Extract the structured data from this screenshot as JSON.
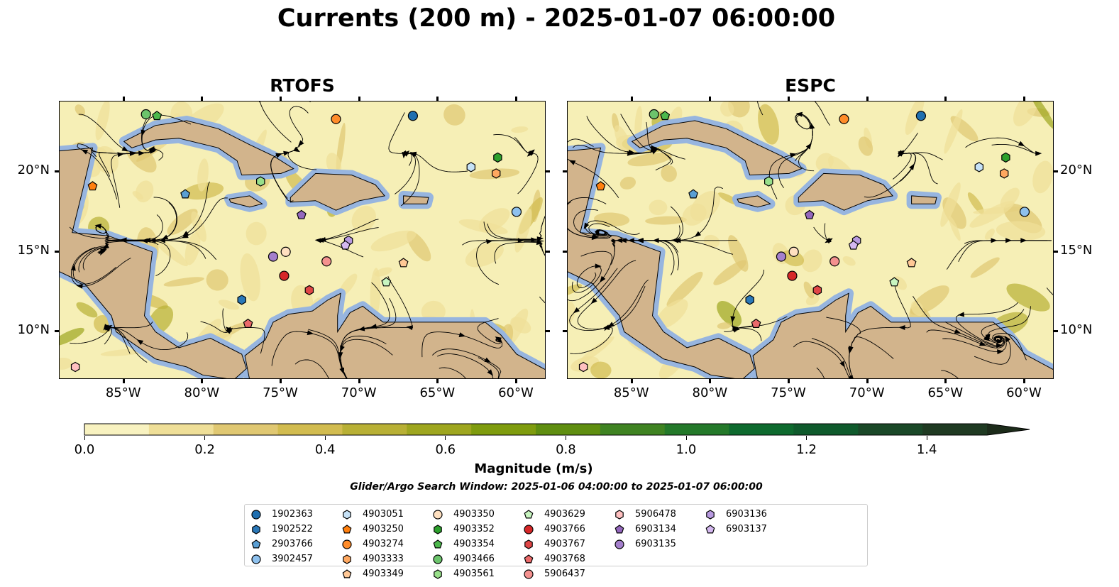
{
  "title": "Currents (200 m) - 2025-01-07 06:00:00",
  "panels": [
    {
      "title": "RTOFS",
      "lat_labels_side": "left"
    },
    {
      "title": "ESPC",
      "lat_labels_side": "right"
    }
  ],
  "map_extent": {
    "lon": [
      -89.1,
      -58.1
    ],
    "lat": [
      7.0,
      24.4
    ]
  },
  "lon_ticks": [
    {
      "value": -85,
      "label": "85°W"
    },
    {
      "value": -80,
      "label": "80°W"
    },
    {
      "value": -75,
      "label": "75°W"
    },
    {
      "value": -70,
      "label": "70°W"
    },
    {
      "value": -65,
      "label": "65°W"
    },
    {
      "value": -60,
      "label": "60°W"
    }
  ],
  "lat_ticks": [
    {
      "value": 20,
      "label": "20°N"
    },
    {
      "value": 15,
      "label": "15°N"
    },
    {
      "value": 10,
      "label": "10°N"
    }
  ],
  "colors": {
    "land": "#d2b48c",
    "shelf": "#97b5df",
    "ocean_low": "#f6efb6"
  },
  "colorbar": {
    "label": "Magnitude (m/s)",
    "min": 0.0,
    "max": 1.5,
    "extend": "max",
    "colors": [
      "#f8f2c0",
      "#efdf98",
      "#e0c872",
      "#d2bc50",
      "#b8b035",
      "#9ea61f",
      "#7f9c0e",
      "#5f8e10",
      "#3f8322",
      "#24792a",
      "#0e6a2e",
      "#0f5a2c",
      "#1a4828",
      "#1f3a22",
      "#1c2b1a"
    ],
    "ticks": [
      {
        "value": 0.0,
        "label": "0.0"
      },
      {
        "value": 0.2,
        "label": "0.2"
      },
      {
        "value": 0.4,
        "label": "0.4"
      },
      {
        "value": 0.6,
        "label": "0.6"
      },
      {
        "value": 0.8,
        "label": "0.8"
      },
      {
        "value": 1.0,
        "label": "1.0"
      },
      {
        "value": 1.2,
        "label": "1.2"
      },
      {
        "value": 1.4,
        "label": "1.4"
      }
    ]
  },
  "search_window": "Glider/Argo Search Window: 2025-01-06 04:00:00 to 2025-01-07 06:00:00",
  "floats": [
    {
      "id": "1902363",
      "marker": "circle",
      "color": "#1f6fb0",
      "lon": -66.6,
      "lat": 23.5
    },
    {
      "id": "1902522",
      "marker": "hexagon",
      "color": "#2a78b8",
      "lon": -77.5,
      "lat": 12.0
    },
    {
      "id": "2903766",
      "marker": "pentagon",
      "color": "#5a9fd4",
      "lon": -81.1,
      "lat": 18.6
    },
    {
      "id": "3902457",
      "marker": "circle",
      "color": "#8ec1ee",
      "lon": -60.0,
      "lat": 17.5
    },
    {
      "id": "4903051",
      "marker": "hexagon",
      "color": "#c6e2f7",
      "lon": -62.9,
      "lat": 20.3
    },
    {
      "id": "4903250",
      "marker": "pentagon",
      "color": "#ff7f0e",
      "lon": -87.0,
      "lat": 19.1
    },
    {
      "id": "4903274",
      "marker": "circle",
      "color": "#ff8c2a",
      "lon": -71.5,
      "lat": 23.3
    },
    {
      "id": "4903333",
      "marker": "hexagon",
      "color": "#ffa860",
      "lon": -61.3,
      "lat": 19.9
    },
    {
      "id": "4903349",
      "marker": "pentagon",
      "color": "#ffc896",
      "lon": -67.2,
      "lat": 14.3
    },
    {
      "id": "4903350",
      "marker": "circle",
      "color": "#ffe0c0",
      "lon": -74.7,
      "lat": 15.0
    },
    {
      "id": "4903352",
      "marker": "hexagon",
      "color": "#2ca02c",
      "lon": -61.2,
      "lat": 20.9
    },
    {
      "id": "4903354",
      "marker": "pentagon",
      "color": "#4cb84c",
      "lon": -82.9,
      "lat": 23.5
    },
    {
      "id": "4903466",
      "marker": "circle",
      "color": "#6cc46c",
      "lon": -83.6,
      "lat": 23.6
    },
    {
      "id": "4903561",
      "marker": "hexagon",
      "color": "#98df8a",
      "lon": -76.3,
      "lat": 19.4
    },
    {
      "id": "4903629",
      "marker": "pentagon",
      "color": "#c8f5c0",
      "lon": -68.3,
      "lat": 13.1
    },
    {
      "id": "4903766",
      "marker": "circle",
      "color": "#d62728",
      "lon": -74.8,
      "lat": 13.5
    },
    {
      "id": "4903767",
      "marker": "hexagon",
      "color": "#e04646",
      "lon": -73.2,
      "lat": 12.6
    },
    {
      "id": "4903768",
      "marker": "pentagon",
      "color": "#eb6a6a",
      "lon": -77.1,
      "lat": 10.5
    },
    {
      "id": "5906437",
      "marker": "circle",
      "color": "#f4918f",
      "lon": -72.1,
      "lat": 14.4
    },
    {
      "id": "5906478",
      "marker": "hexagon",
      "color": "#ffc0c0",
      "lon": -88.1,
      "lat": 7.8
    },
    {
      "id": "6903134",
      "marker": "pentagon",
      "color": "#9467bd",
      "lon": -73.7,
      "lat": 17.3
    },
    {
      "id": "6903135",
      "marker": "circle",
      "color": "#a47fcc",
      "lon": -75.5,
      "lat": 14.7
    },
    {
      "id": "6903136",
      "marker": "hexagon",
      "color": "#b89ae0",
      "lon": -70.7,
      "lat": 15.7
    },
    {
      "id": "6903137",
      "marker": "pentagon",
      "color": "#d4b8f0",
      "lon": -70.9,
      "lat": 15.4
    }
  ]
}
